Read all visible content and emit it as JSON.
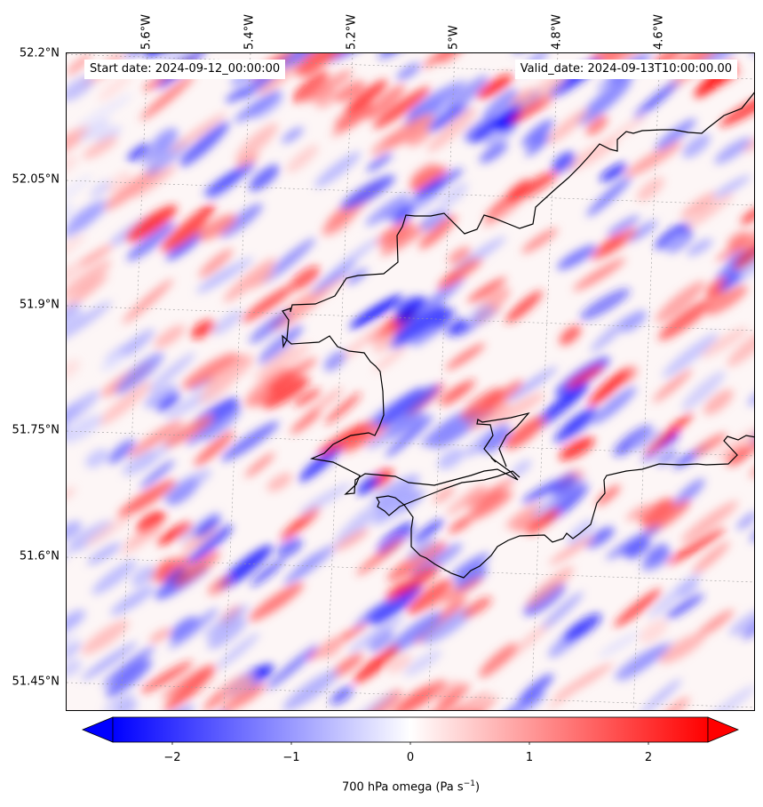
{
  "map": {
    "variable": "700 hPa omega",
    "units": "Pa s",
    "units_exponent": "−1",
    "start_label": "Start date: 2024-09-12_00:00:00",
    "valid_label": "Valid_date: 2024-09-13T10:00:00.00",
    "lon_ticks": [
      "5.6°W",
      "5.4°W",
      "5.2°W",
      "5°W",
      "4.8°W",
      "4.6°W"
    ],
    "lat_ticks": [
      "52.2°N",
      "52.05°N",
      "51.9°N",
      "51.75°N",
      "51.6°N",
      "51.45°N"
    ],
    "colormap": "bwr",
    "color_min": "#0000ff",
    "color_mid": "#ffffff",
    "color_max": "#ff0000",
    "range": [
      -2.5,
      2.5
    ],
    "colorbar_ticks": [
      "−2",
      "−1",
      "0",
      "1",
      "2"
    ],
    "colorbar_extend": "both",
    "coastline_color": "#000000",
    "pattern": "diagonal SW–NE banded wave field of alternating ascent (blue) and descent (red)"
  }
}
